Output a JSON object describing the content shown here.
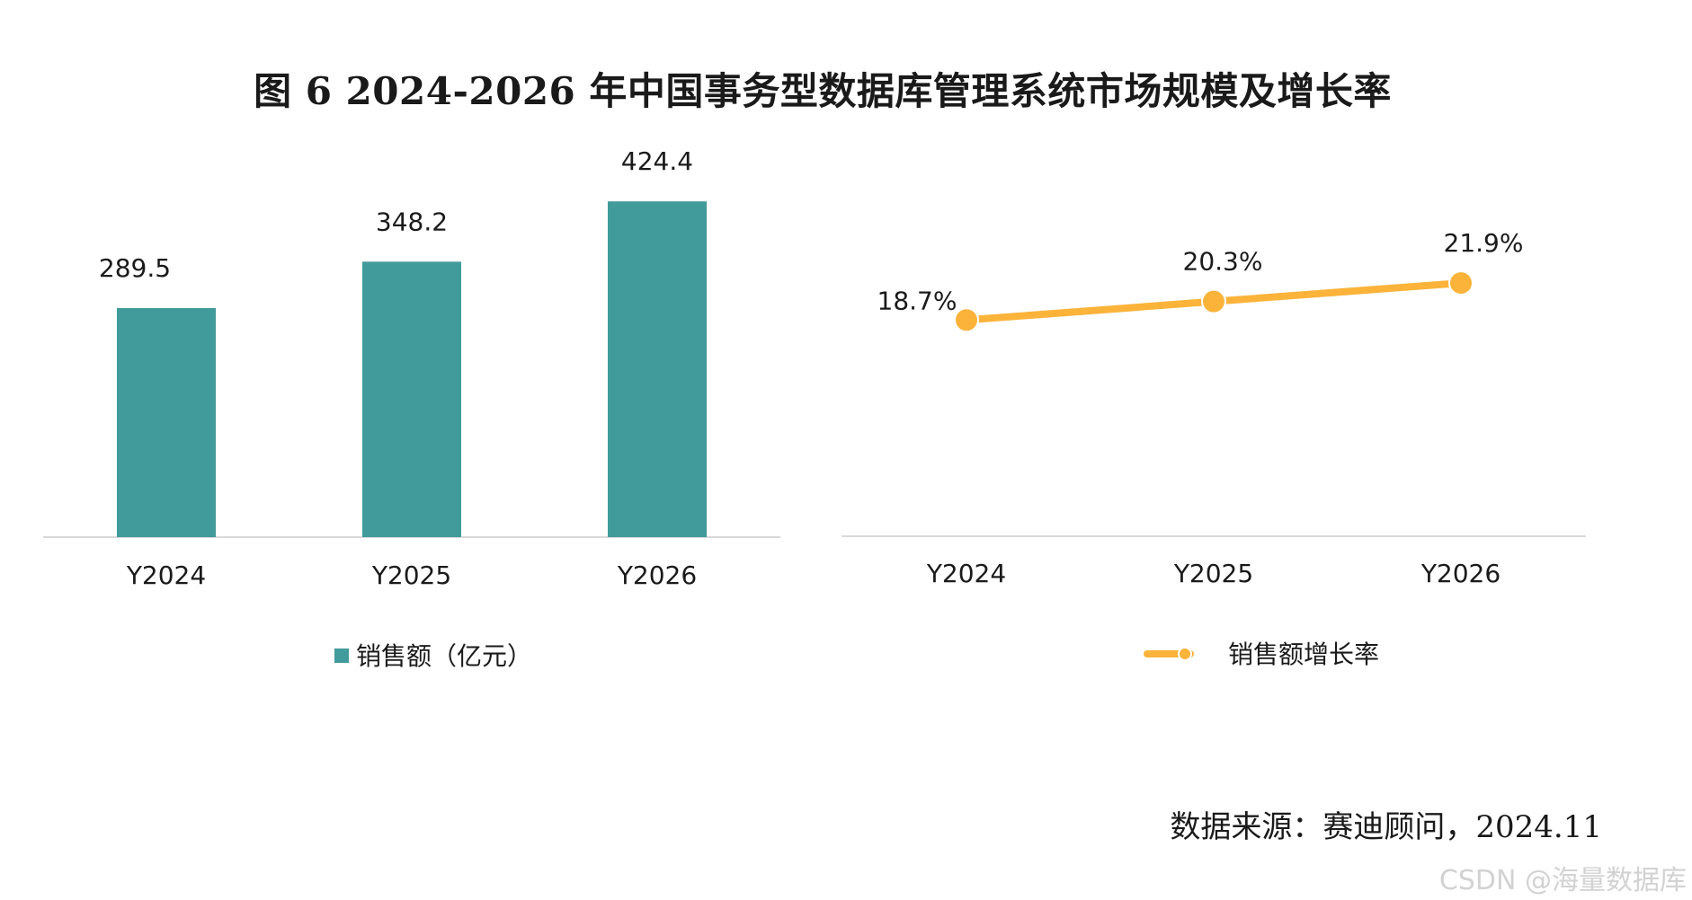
{
  "figure_title": "图 6 2024-2026 年中国事务型数据库管理系统市场规模及增长率",
  "source_note": "数据来源：赛迪顾问，2024.11",
  "watermark": "CSDN @海量数据库",
  "colors": {
    "bar": "#419b9a",
    "line": "#fbb33a",
    "axis": "#d9d9d9",
    "text": "#1a1a1a"
  },
  "chart_data": [
    {
      "type": "bar",
      "categories": [
        "Y2024",
        "Y2025",
        "Y2026"
      ],
      "series": [
        {
          "name": "销售额（亿元）",
          "values": [
            289.5,
            348.2,
            424.4
          ],
          "labels": [
            "289.5",
            "348.2",
            "424.4"
          ]
        }
      ],
      "ylim": [
        0,
        520
      ],
      "grid": false,
      "legend": "bottom"
    },
    {
      "type": "line",
      "categories": [
        "Y2024",
        "Y2025",
        "Y2026"
      ],
      "series": [
        {
          "name": "销售额增长率",
          "values": [
            18.7,
            20.3,
            21.9
          ],
          "labels": [
            "18.7%",
            "20.3%",
            "21.9%"
          ]
        }
      ],
      "ylim": [
        0,
        35.5
      ],
      "grid": false,
      "legend": "bottom"
    }
  ]
}
